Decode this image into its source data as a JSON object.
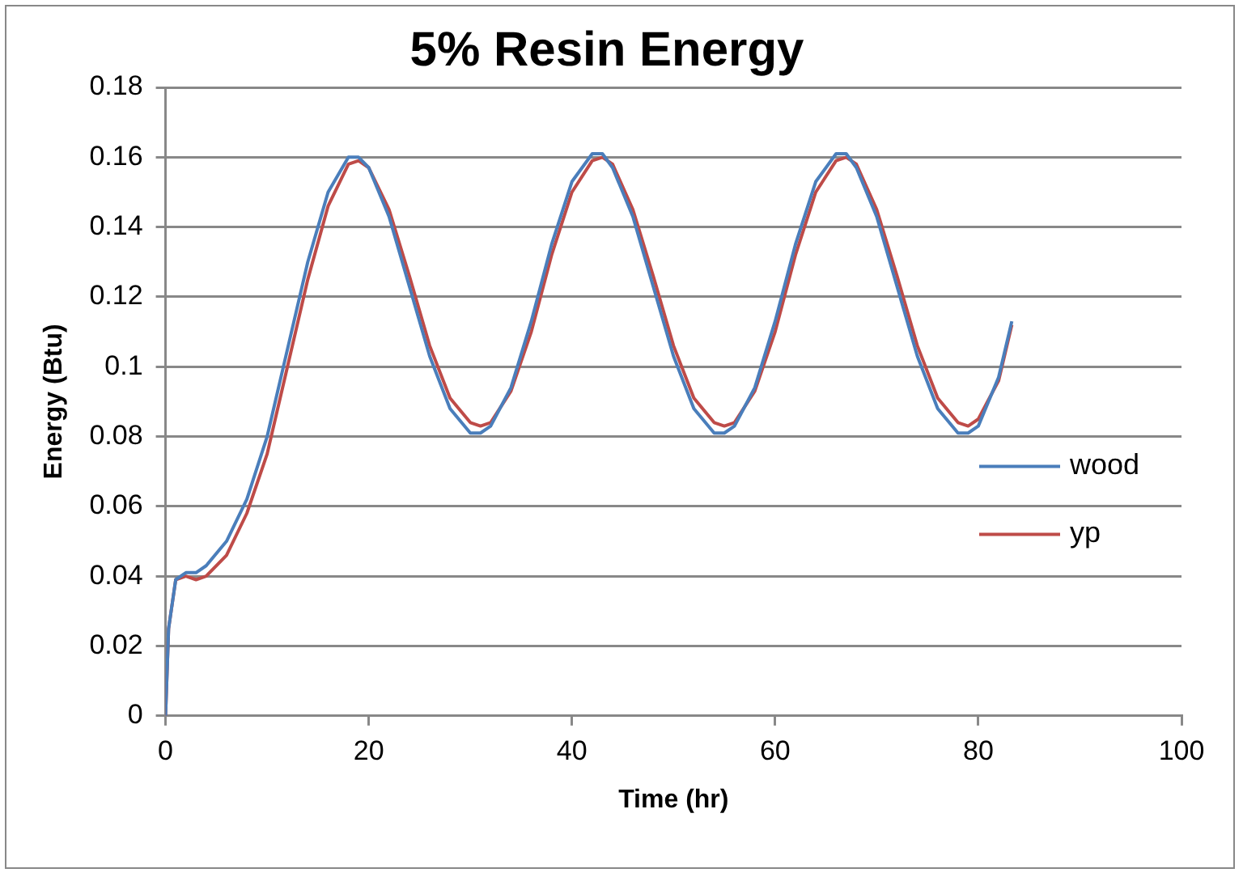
{
  "chart_data": {
    "type": "line",
    "title": "5% Resin Energy",
    "xlabel": "Time (hr)",
    "ylabel": "Energy (Btu)",
    "xlim": [
      0,
      100
    ],
    "xticks": [
      0,
      20,
      40,
      60,
      80,
      100
    ],
    "ylim": [
      0,
      0.18
    ],
    "yticks": [
      0,
      0.02,
      0.04,
      0.06,
      0.08,
      0.1,
      0.12,
      0.14,
      0.16,
      0.18
    ],
    "grid": "y",
    "legend": "right",
    "marker": "none",
    "line_style": "solid",
    "series": [
      {
        "name": "wood",
        "color": "#4a7ebb",
        "x": [
          0,
          0.3,
          1,
          2,
          3,
          4,
          6,
          8,
          10,
          12,
          14,
          16,
          18,
          19,
          20,
          22,
          24,
          26,
          28,
          30,
          31,
          32,
          34,
          36,
          38,
          40,
          42,
          43,
          44,
          46,
          48,
          50,
          52,
          54,
          55,
          56,
          58,
          60,
          62,
          64,
          66,
          67,
          68,
          70,
          72,
          74,
          76,
          78,
          79,
          80,
          82,
          83.3
        ],
        "values": [
          0,
          0.025,
          0.039,
          0.041,
          0.041,
          0.043,
          0.05,
          0.062,
          0.08,
          0.105,
          0.13,
          0.15,
          0.16,
          0.16,
          0.157,
          0.143,
          0.123,
          0.103,
          0.088,
          0.081,
          0.081,
          0.083,
          0.094,
          0.113,
          0.135,
          0.153,
          0.161,
          0.161,
          0.157,
          0.143,
          0.123,
          0.103,
          0.088,
          0.081,
          0.081,
          0.083,
          0.094,
          0.113,
          0.135,
          0.153,
          0.161,
          0.161,
          0.157,
          0.143,
          0.123,
          0.103,
          0.088,
          0.081,
          0.081,
          0.083,
          0.097,
          0.113
        ]
      },
      {
        "name": "yp",
        "color": "#be4b48",
        "x": [
          0,
          0.3,
          1,
          2,
          3,
          4,
          6,
          8,
          10,
          12,
          14,
          16,
          18,
          19,
          20,
          22,
          24,
          26,
          28,
          30,
          31,
          32,
          34,
          36,
          38,
          40,
          42,
          43,
          44,
          46,
          48,
          50,
          52,
          54,
          55,
          56,
          58,
          60,
          62,
          64,
          66,
          67,
          68,
          70,
          72,
          74,
          76,
          78,
          79,
          80,
          82,
          83.3
        ],
        "values": [
          0,
          0.025,
          0.039,
          0.04,
          0.039,
          0.04,
          0.046,
          0.058,
          0.075,
          0.1,
          0.125,
          0.146,
          0.158,
          0.159,
          0.157,
          0.145,
          0.126,
          0.106,
          0.091,
          0.084,
          0.083,
          0.084,
          0.093,
          0.11,
          0.132,
          0.15,
          0.159,
          0.16,
          0.158,
          0.145,
          0.126,
          0.106,
          0.091,
          0.084,
          0.083,
          0.084,
          0.093,
          0.11,
          0.132,
          0.15,
          0.159,
          0.16,
          0.158,
          0.145,
          0.126,
          0.106,
          0.091,
          0.084,
          0.083,
          0.085,
          0.096,
          0.112
        ]
      }
    ]
  }
}
